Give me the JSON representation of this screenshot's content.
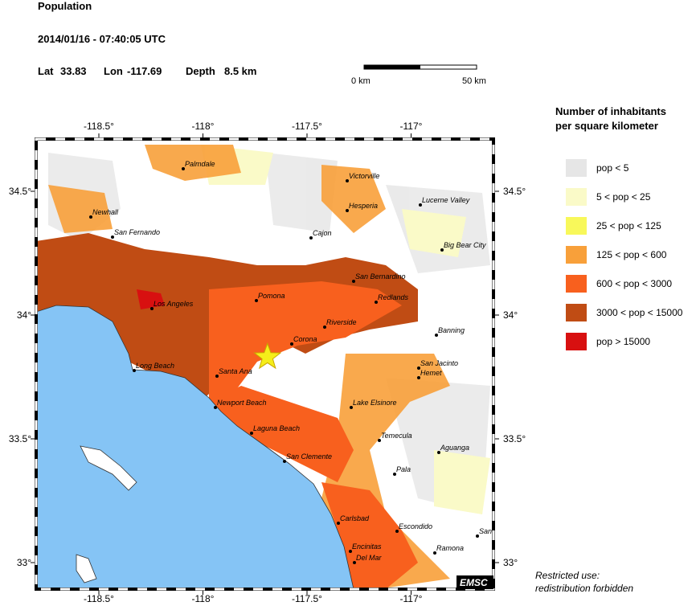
{
  "header": {
    "title": "Population",
    "datetime": "2014/01/16 - 07:40:05 UTC",
    "lat_label": "Lat",
    "lat": 33.83,
    "lon_label": "Lon",
    "lon": -117.69,
    "depth_label": "Depth",
    "depth": "8.5 km"
  },
  "scale_bar": {
    "start": "0 km",
    "end": "50 km"
  },
  "map": {
    "lon_ticks": [
      {
        "value": -118.5,
        "label": "-118.5°"
      },
      {
        "value": -118,
        "label": "-118°"
      },
      {
        "value": -117.5,
        "label": "-117.5°"
      },
      {
        "value": -117,
        "label": "-117°"
      }
    ],
    "lat_ticks": [
      {
        "value": 34.5,
        "label": "34.5°"
      },
      {
        "value": 34,
        "label": "34°"
      },
      {
        "value": 33.5,
        "label": "33.5°"
      },
      {
        "value": 33,
        "label": "33°"
      }
    ],
    "cities": [
      "Palmdale",
      "Victorville",
      "Newhall",
      "Hesperia",
      "Lucerne Valley",
      "San Fernando",
      "Cajon",
      "Big Bear City",
      "San Bernardino",
      "Pomona",
      "Redlands",
      "Los Angeles",
      "Riverside",
      "Banning",
      "Corona",
      "San Jacinto",
      "Hemet",
      "Long Beach",
      "Santa Ana",
      "Lake Elsinore",
      "Newport Beach",
      "Laguna Beach",
      "Temecula",
      "Aguanga",
      "San Clemente",
      "Pala",
      "Carlsbad",
      "Escondido",
      "San",
      "Encinitas",
      "Ramona",
      "Del Mar"
    ],
    "logo": "EMSC"
  },
  "legend": {
    "title_line1": "Number of inhabitants",
    "title_line2": "per square kilometer",
    "entries": [
      {
        "label": "pop < 5",
        "color": "#e6e6e6"
      },
      {
        "label": "5 < pop < 25",
        "color": "#fafac8"
      },
      {
        "label": "25 < pop < 125",
        "color": "#f8f85a"
      },
      {
        "label": "125 < pop < 600",
        "color": "#f8a03a"
      },
      {
        "label": "600 < pop < 3000",
        "color": "#f8601e"
      },
      {
        "label": "3000 < pop < 15000",
        "color": "#c04c14"
      },
      {
        "label": "pop > 15000",
        "color": "#d81010"
      }
    ]
  },
  "note": {
    "line1": "Restricted use:",
    "line2": "redistribution forbidden"
  }
}
